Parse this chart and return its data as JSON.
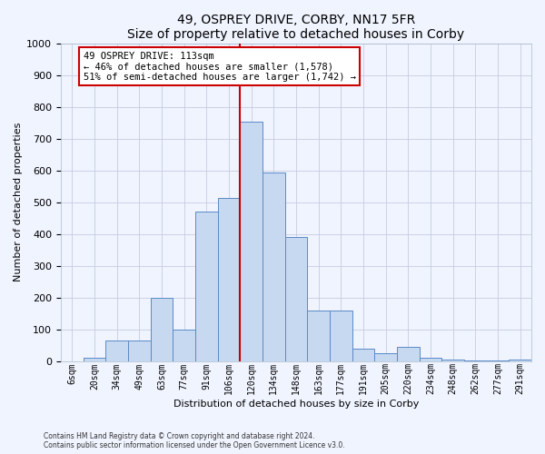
{
  "title": "49, OSPREY DRIVE, CORBY, NN17 5FR",
  "subtitle": "Size of property relative to detached houses in Corby",
  "xlabel": "Distribution of detached houses by size in Corby",
  "ylabel": "Number of detached properties",
  "footer_line1": "Contains HM Land Registry data © Crown copyright and database right 2024.",
  "footer_line2": "Contains public sector information licensed under the Open Government Licence v3.0.",
  "bar_labels": [
    "6sqm",
    "20sqm",
    "34sqm",
    "49sqm",
    "63sqm",
    "77sqm",
    "91sqm",
    "106sqm",
    "120sqm",
    "134sqm",
    "148sqm",
    "163sqm",
    "177sqm",
    "191sqm",
    "205sqm",
    "220sqm",
    "234sqm",
    "248sqm",
    "262sqm",
    "277sqm",
    "291sqm"
  ],
  "bar_values": [
    0,
    12,
    65,
    65,
    200,
    100,
    470,
    515,
    755,
    595,
    390,
    160,
    160,
    40,
    25,
    45,
    10,
    5,
    3,
    2,
    5
  ],
  "bar_color": "#c6d9f0",
  "bar_edge_color": "#5b8ac7",
  "ylim_max": 1000,
  "vline_position": 8.0,
  "vline_color": "#cc0000",
  "annotation_line1": "49 OSPREY DRIVE: 113sqm",
  "annotation_line2": "← 46% of detached houses are smaller (1,578)",
  "annotation_line3": "51% of semi-detached houses are larger (1,742) →",
  "bg_color": "#f0f4ff",
  "grid_color": "#c5cce0",
  "title_fontsize": 10,
  "ylabel_fontsize": 8,
  "xlabel_fontsize": 8,
  "tick_fontsize": 7,
  "annotation_fontsize": 7.5
}
